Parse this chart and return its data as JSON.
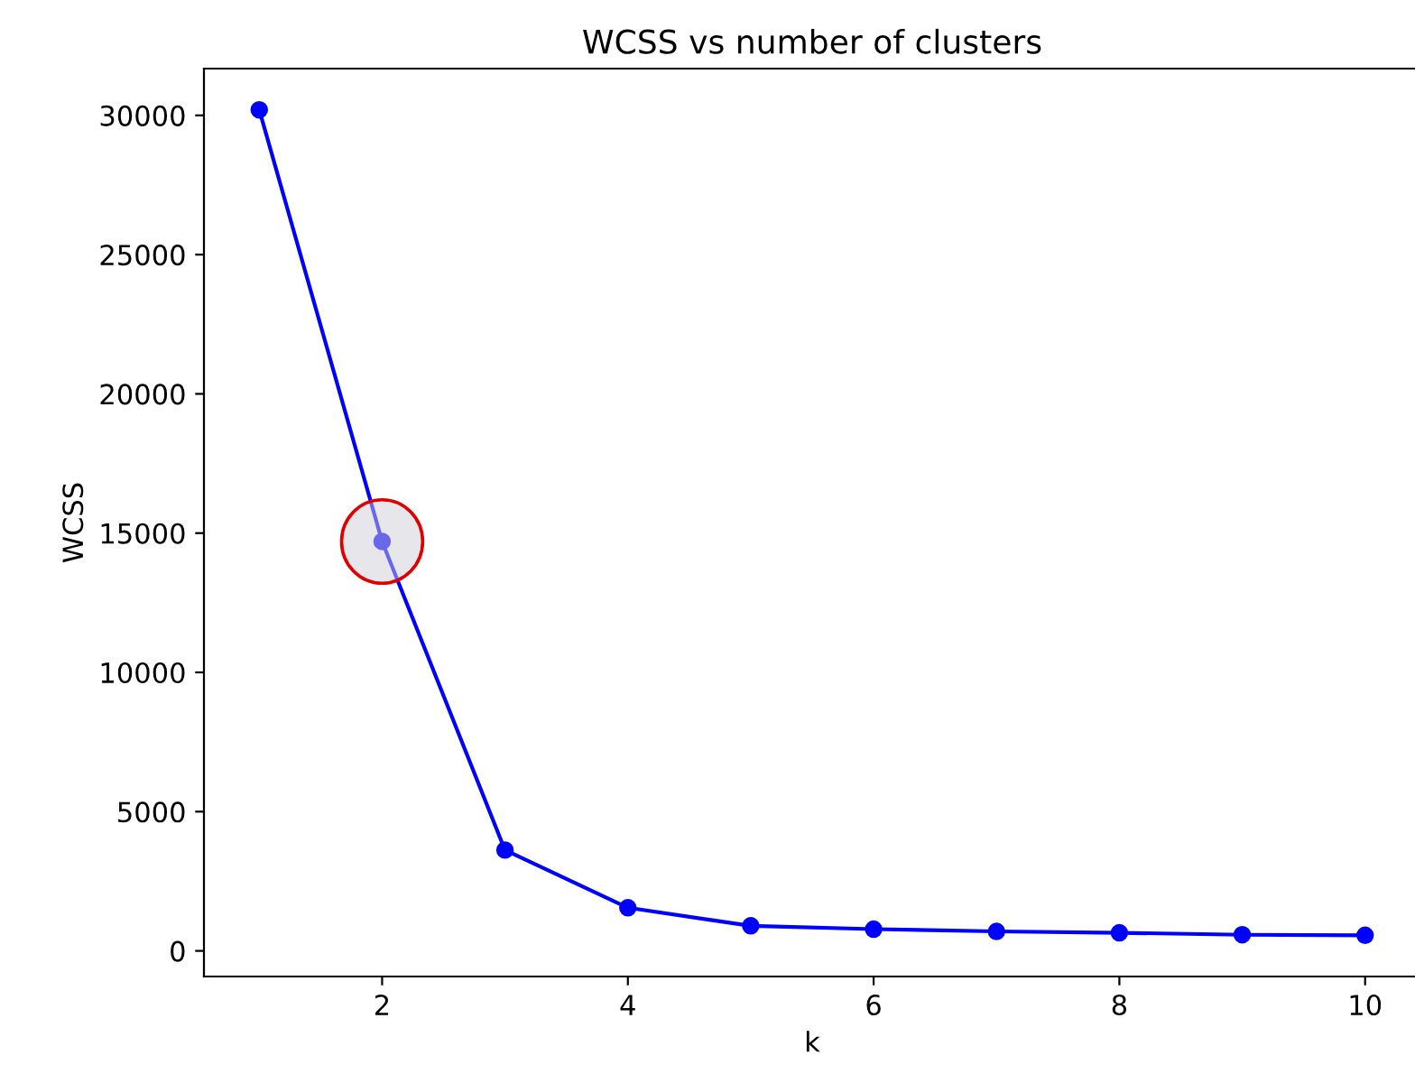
{
  "chart_data": {
    "type": "line",
    "title": "WCSS vs number of clusters",
    "xlabel": "k",
    "ylabel": "WCSS",
    "x": [
      1,
      2,
      3,
      4,
      5,
      6,
      7,
      8,
      9,
      10
    ],
    "series": [
      {
        "color": "#0000ff",
        "values": [
          30200,
          14700,
          3620,
          1550,
          900,
          780,
          700,
          650,
          580,
          560
        ]
      }
    ],
    "marker": "circle",
    "line_style": "solid",
    "grid": false,
    "legend": false,
    "xlim": [
      0.55,
      10.45
    ],
    "ylim": [
      -920,
      31680
    ],
    "xticks": [
      2,
      4,
      6,
      8,
      10
    ],
    "yticks": [
      0,
      5000,
      10000,
      15000,
      20000,
      25000,
      30000
    ]
  }
}
